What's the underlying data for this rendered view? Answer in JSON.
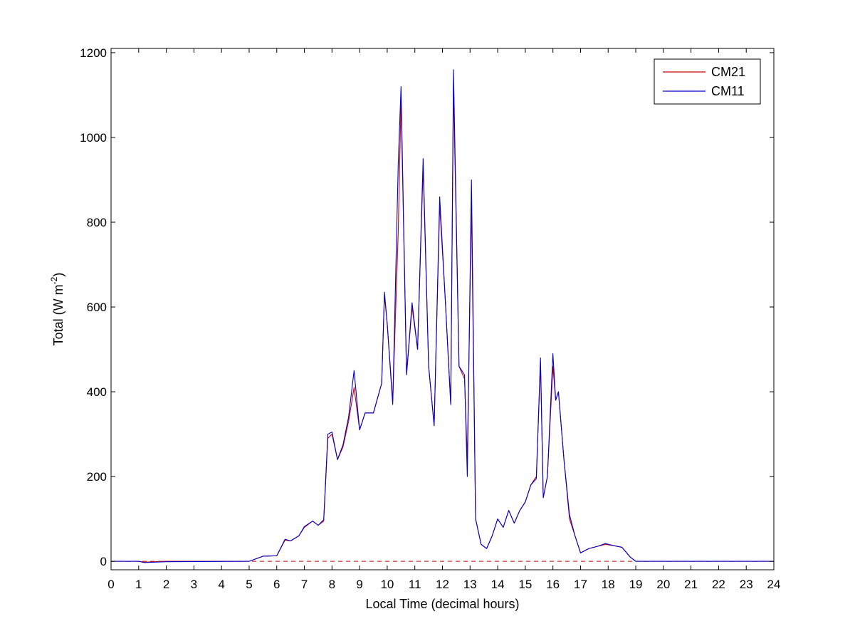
{
  "chart_data": {
    "type": "line",
    "xlabel": "Local Time (decimal hours)",
    "ylabel": "Total (W m",
    "ylabel_superscript": "-2",
    "ylabel_suffix": ")",
    "xlim": [
      0,
      24
    ],
    "ylim": [
      -20,
      1210
    ],
    "xticks": [
      0,
      1,
      2,
      3,
      4,
      5,
      6,
      7,
      8,
      9,
      10,
      11,
      12,
      13,
      14,
      15,
      16,
      17,
      18,
      19,
      20,
      21,
      22,
      23,
      24
    ],
    "yticks": [
      0,
      200,
      400,
      600,
      800,
      1000,
      1200
    ],
    "grid": false,
    "legend": "top-right",
    "zero_line": {
      "y": 0,
      "style": "dashed",
      "color": "#cc0000"
    },
    "series": [
      {
        "name": "CM21",
        "color": "#cc0000",
        "x": [
          0,
          1,
          1.2,
          2,
          5,
          5.5,
          6,
          6.3,
          6.5,
          6.8,
          7,
          7.3,
          7.5,
          7.7,
          7.85,
          8,
          8.2,
          8.4,
          8.6,
          8.8,
          9,
          9.2,
          9.5,
          9.8,
          9.9,
          10,
          10.2,
          10.4,
          10.5,
          10.7,
          10.9,
          11.1,
          11.3,
          11.5,
          11.7,
          11.9,
          12.1,
          12.3,
          12.4,
          12.6,
          12.8,
          12.9,
          13.05,
          13.2,
          13.4,
          13.6,
          13.8,
          14,
          14.2,
          14.4,
          14.6,
          14.8,
          15,
          15.2,
          15.4,
          15.55,
          15.65,
          15.8,
          16,
          16.1,
          16.2,
          16.4,
          16.6,
          16.8,
          17,
          17.3,
          17.6,
          17.9,
          18.2,
          18.5,
          18.8,
          19,
          24
        ],
        "y": [
          0,
          0,
          -2,
          0,
          0,
          12,
          13,
          50,
          48,
          60,
          80,
          95,
          85,
          95,
          290,
          300,
          240,
          270,
          330,
          410,
          310,
          350,
          350,
          420,
          630,
          560,
          380,
          780,
          1090,
          440,
          600,
          500,
          930,
          460,
          320,
          840,
          620,
          370,
          1120,
          460,
          430,
          240,
          840,
          100,
          40,
          30,
          60,
          100,
          80,
          120,
          90,
          120,
          140,
          180,
          200,
          470,
          150,
          200,
          460,
          380,
          400,
          240,
          100,
          60,
          20,
          30,
          35,
          40,
          37,
          33,
          10,
          0,
          0
        ]
      },
      {
        "name": "CM11",
        "color": "#0000cc",
        "x": [
          0,
          1,
          1.2,
          2,
          5,
          5.5,
          6,
          6.3,
          6.5,
          6.8,
          7,
          7.3,
          7.5,
          7.7,
          7.85,
          8,
          8.2,
          8.4,
          8.6,
          8.8,
          9,
          9.2,
          9.5,
          9.8,
          9.9,
          10,
          10.2,
          10.4,
          10.5,
          10.7,
          10.9,
          11.1,
          11.3,
          11.5,
          11.7,
          11.9,
          12.1,
          12.3,
          12.4,
          12.6,
          12.8,
          12.9,
          13.05,
          13.2,
          13.4,
          13.6,
          13.8,
          14,
          14.2,
          14.4,
          14.6,
          14.8,
          15,
          15.2,
          15.4,
          15.55,
          15.65,
          15.8,
          16,
          16.1,
          16.2,
          16.4,
          16.6,
          16.8,
          17,
          17.3,
          17.6,
          17.9,
          18.2,
          18.5,
          18.8,
          19,
          24
        ],
        "y": [
          0,
          0,
          -3,
          -1,
          0,
          12,
          13,
          52,
          48,
          60,
          82,
          95,
          85,
          98,
          300,
          305,
          240,
          275,
          340,
          450,
          310,
          350,
          350,
          420,
          635,
          560,
          370,
          940,
          1120,
          440,
          610,
          500,
          950,
          460,
          320,
          860,
          620,
          370,
          1160,
          460,
          440,
          200,
          900,
          100,
          40,
          30,
          60,
          100,
          80,
          120,
          90,
          120,
          140,
          180,
          195,
          480,
          150,
          200,
          490,
          380,
          400,
          240,
          110,
          60,
          20,
          30,
          35,
          42,
          37,
          33,
          10,
          0,
          0
        ]
      }
    ]
  }
}
